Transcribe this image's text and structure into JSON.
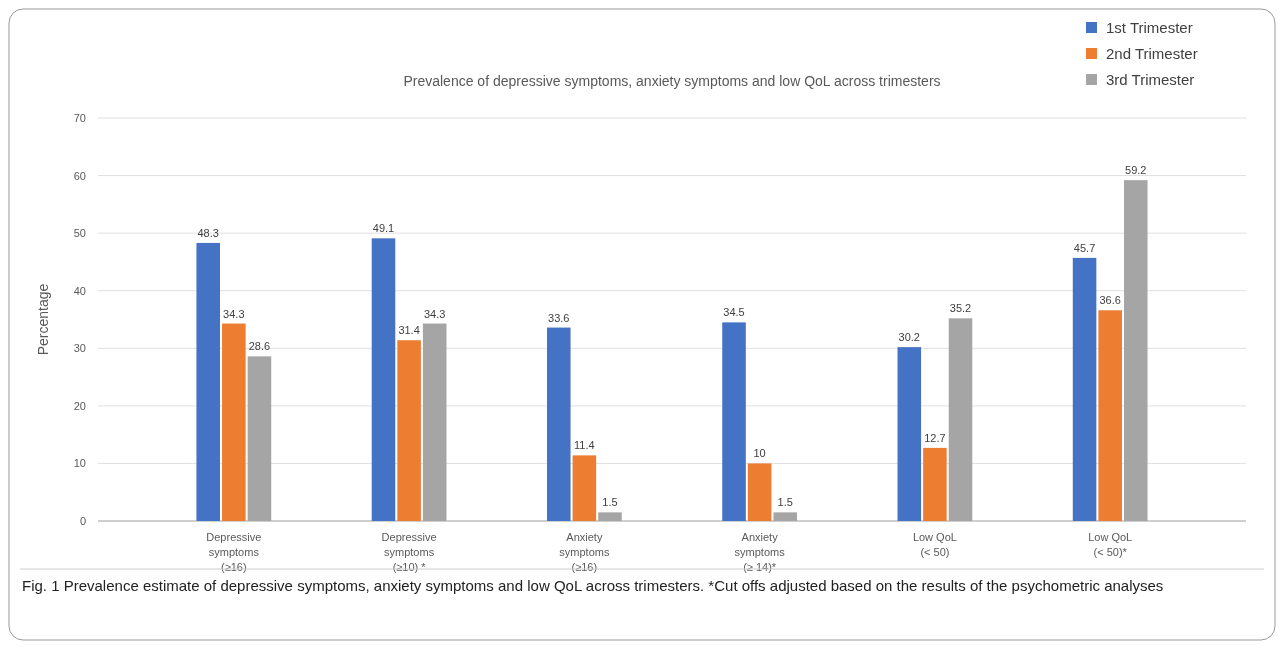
{
  "chart_data": {
    "type": "bar",
    "title": "Prevalence of depressive symptoms, anxiety symptoms and low QoL across trimesters",
    "ylabel": "Percentage",
    "categories": [
      "Depressive\nsymptoms\n(≥16)",
      "Depressive\nsymptoms\n(≥10) *",
      "Anxiety\nsymptoms\n(≥16)",
      "Anxiety\nsymptoms\n(≥ 14)*",
      "Low QoL\n(< 50)",
      "Low QoL\n(< 50)*"
    ],
    "series": [
      {
        "name": "1st Trimester",
        "color": "#4472c4",
        "values": [
          48.3,
          49.1,
          33.6,
          34.5,
          30.2,
          45.7
        ]
      },
      {
        "name": "2nd Trimester",
        "color": "#ed7d31",
        "values": [
          34.3,
          31.4,
          11.4,
          10,
          12.7,
          36.6
        ]
      },
      {
        "name": "3rd Trimester",
        "color": "#a5a5a5",
        "values": [
          28.6,
          34.3,
          1.5,
          1.5,
          35.2,
          59.2
        ]
      }
    ],
    "ylim": [
      0,
      70
    ],
    "yticks": [
      0,
      10,
      20,
      30,
      40,
      50,
      60,
      70
    ],
    "grid": "y",
    "legend": "top right",
    "data_labels": true,
    "annotations": [
      "Fig. 1  Prevalence estimate of depressive symptoms, anxiety symptoms and low QoL across trimesters. *Cut offs adjusted based on the results of the psychometric analyses"
    ]
  }
}
